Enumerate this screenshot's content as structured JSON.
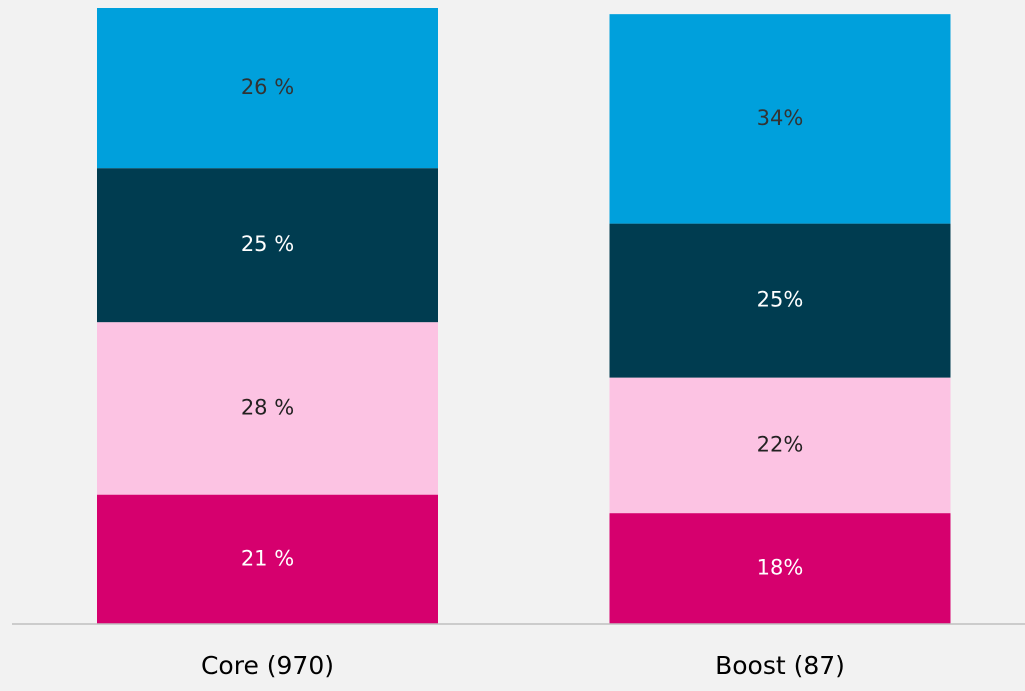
{
  "chart_data": {
    "type": "stacked_bar",
    "categories": [
      "Core (970)",
      "Boost (87)"
    ],
    "ylim": [
      0,
      100
    ],
    "series": [
      {
        "color": "#d6006e",
        "label_color": "#ffffff",
        "values": [
          21,
          18
        ],
        "value_labels": [
          "21 %",
          "18%"
        ]
      },
      {
        "color": "#fcc3e3",
        "label_color": "#222222",
        "values": [
          28,
          22
        ],
        "value_labels": [
          "28 %",
          "22%"
        ]
      },
      {
        "color": "#003c50",
        "label_color": "#ffffff",
        "values": [
          25,
          25
        ],
        "value_labels": [
          "25 %",
          "25%"
        ]
      },
      {
        "color": "#00a0dc",
        "label_color": "#333333",
        "values": [
          26,
          34
        ],
        "value_labels": [
          "26 %",
          "34%"
        ]
      }
    ]
  }
}
